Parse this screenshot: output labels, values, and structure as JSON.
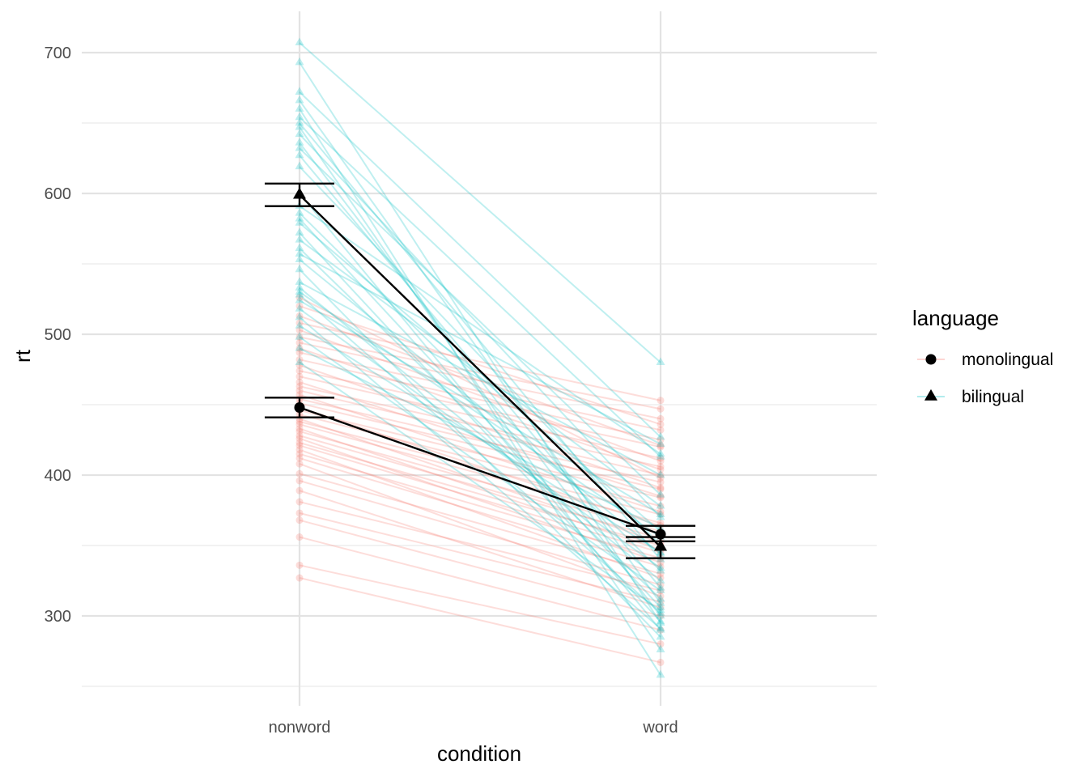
{
  "chart_data": {
    "type": "line",
    "xlabel": "condition",
    "ylabel": "rt",
    "categories": [
      "nonword",
      "word"
    ],
    "ylim": [
      250,
      730
    ],
    "y_ticks": [
      300,
      400,
      500,
      600,
      700
    ],
    "grid": true,
    "legend": {
      "title": "language",
      "placement": "right",
      "entries": [
        {
          "label": "monolingual",
          "shape": "circle",
          "color": "#F8766D"
        },
        {
          "label": "bilingual",
          "shape": "triangle",
          "color": "#00BFC4"
        }
      ]
    },
    "subject_series": [
      {
        "group": "monolingual",
        "color": "#F8766D",
        "shape": "circle",
        "values": [
          [
            327,
            267
          ],
          [
            336,
            280
          ],
          [
            356,
            290
          ],
          [
            368,
            300
          ],
          [
            373,
            310
          ],
          [
            381,
            318
          ],
          [
            389,
            306
          ],
          [
            396,
            322
          ],
          [
            401,
            330
          ],
          [
            408,
            314
          ],
          [
            412,
            335
          ],
          [
            415,
            341
          ],
          [
            418,
            327
          ],
          [
            421,
            345
          ],
          [
            423,
            350
          ],
          [
            426,
            338
          ],
          [
            428,
            355
          ],
          [
            431,
            360
          ],
          [
            433,
            347
          ],
          [
            436,
            366
          ],
          [
            438,
            372
          ],
          [
            440,
            352
          ],
          [
            443,
            378
          ],
          [
            446,
            384
          ],
          [
            448,
            364
          ],
          [
            451,
            390
          ],
          [
            454,
            395
          ],
          [
            457,
            374
          ],
          [
            460,
            400
          ],
          [
            463,
            406
          ],
          [
            466,
            385
          ],
          [
            470,
            412
          ],
          [
            474,
            420
          ],
          [
            478,
            391
          ],
          [
            482,
            425
          ],
          [
            487,
            432
          ],
          [
            490,
            404
          ],
          [
            494,
            440
          ],
          [
            498,
            447
          ],
          [
            503,
            410
          ],
          [
            508,
            453
          ],
          [
            513,
            421
          ],
          [
            520,
            436
          ],
          [
            526,
            398
          ]
        ]
      },
      {
        "group": "bilingual",
        "color": "#00BFC4",
        "shape": "triangle",
        "values": [
          [
            707,
            480
          ],
          [
            693,
            295
          ],
          [
            672,
            427
          ],
          [
            666,
            309
          ],
          [
            660,
            258
          ],
          [
            654,
            413
          ],
          [
            650,
            340
          ],
          [
            647,
            276
          ],
          [
            642,
            370
          ],
          [
            636,
            300
          ],
          [
            632,
            386
          ],
          [
            627,
            320
          ],
          [
            619,
            350
          ],
          [
            600,
            290
          ],
          [
            591,
            415
          ],
          [
            586,
            332
          ],
          [
            582,
            306
          ],
          [
            579,
            360
          ],
          [
            572,
            296
          ],
          [
            567,
            378
          ],
          [
            561,
            312
          ],
          [
            557,
            422
          ],
          [
            553,
            344
          ],
          [
            546,
            285
          ],
          [
            537,
            400
          ],
          [
            533,
            325
          ],
          [
            530,
            356
          ],
          [
            528,
            302
          ],
          [
            524,
            372
          ],
          [
            518,
            334
          ],
          [
            512,
            291
          ],
          [
            506,
            345
          ],
          [
            498,
            318
          ],
          [
            490,
            362
          ],
          [
            480,
            304
          ]
        ]
      }
    ],
    "summary_series": [
      {
        "group": "monolingual",
        "shape": "circle",
        "values": [
          448,
          358
        ],
        "error_low": [
          441,
          353
        ],
        "error_high": [
          455,
          364
        ]
      },
      {
        "group": "bilingual",
        "shape": "triangle",
        "values": [
          599,
          349
        ],
        "error_low": [
          591,
          341
        ],
        "error_high": [
          607,
          356
        ]
      }
    ]
  }
}
